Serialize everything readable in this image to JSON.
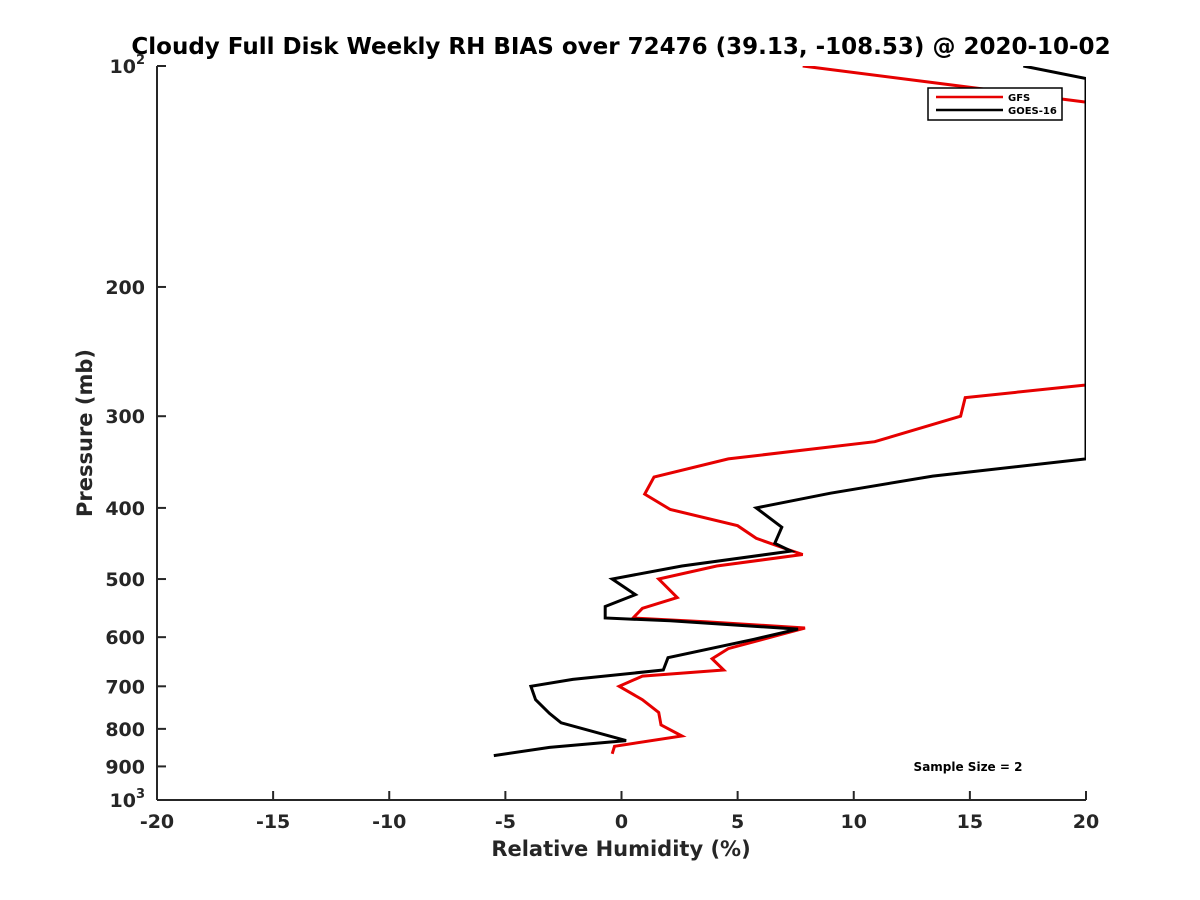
{
  "chart_data": {
    "type": "line",
    "title": "Cloudy Full Disk Weekly RH BIAS over 72476 (39.13, -108.53) @ 2020-10-02",
    "xlabel": "Relative Humidity (%)",
    "ylabel": "Pressure (mb)",
    "xlim": [
      -20,
      20
    ],
    "ylim": [
      100,
      1000
    ],
    "y_scale": "log",
    "y_reversed": true,
    "x_ticks": [
      "-20",
      "-15",
      "-10",
      "-5",
      "0",
      "5",
      "10",
      "15",
      "20"
    ],
    "y_ticks": [
      {
        "value": 100,
        "base": "10",
        "exp": "2"
      },
      {
        "value": 200,
        "label": "200"
      },
      {
        "value": 300,
        "label": "300"
      },
      {
        "value": 400,
        "label": "400"
      },
      {
        "value": 500,
        "label": "500"
      },
      {
        "value": 600,
        "label": "600"
      },
      {
        "value": 700,
        "label": "700"
      },
      {
        "value": 800,
        "label": "800"
      },
      {
        "value": 900,
        "label": "900"
      },
      {
        "value": 1000,
        "base": "10",
        "exp": "3"
      }
    ],
    "grid": false,
    "legend_position": "top-right",
    "annotation": "Sample Size = 2",
    "series": [
      {
        "name": "GFS",
        "color": "#e60000",
        "points": [
          {
            "x": 7.8,
            "y": 100
          },
          {
            "x": 20.0,
            "y": 112
          },
          {
            "x": 20.0,
            "y": 272
          },
          {
            "x": 14.8,
            "y": 283
          },
          {
            "x": 14.6,
            "y": 300
          },
          {
            "x": 10.9,
            "y": 325
          },
          {
            "x": 4.6,
            "y": 343
          },
          {
            "x": 1.4,
            "y": 363
          },
          {
            "x": 1.0,
            "y": 383
          },
          {
            "x": 2.1,
            "y": 402
          },
          {
            "x": 5.0,
            "y": 423
          },
          {
            "x": 5.8,
            "y": 440
          },
          {
            "x": 7.1,
            "y": 455
          },
          {
            "x": 7.8,
            "y": 463
          },
          {
            "x": 4.1,
            "y": 480
          },
          {
            "x": 1.6,
            "y": 500
          },
          {
            "x": 2.4,
            "y": 530
          },
          {
            "x": 0.9,
            "y": 548
          },
          {
            "x": 0.5,
            "y": 565
          },
          {
            "x": 3.7,
            "y": 572
          },
          {
            "x": 7.9,
            "y": 583
          },
          {
            "x": 4.6,
            "y": 622
          },
          {
            "x": 3.9,
            "y": 642
          },
          {
            "x": 4.4,
            "y": 665
          },
          {
            "x": 0.9,
            "y": 678
          },
          {
            "x": -0.1,
            "y": 700
          },
          {
            "x": 0.9,
            "y": 730
          },
          {
            "x": 1.6,
            "y": 760
          },
          {
            "x": 1.7,
            "y": 790
          },
          {
            "x": 2.6,
            "y": 818
          },
          {
            "x": -0.3,
            "y": 845
          },
          {
            "x": -0.4,
            "y": 865
          }
        ]
      },
      {
        "name": "GOES-16",
        "color": "#000000",
        "points": [
          {
            "x": 17.3,
            "y": 100
          },
          {
            "x": 20.0,
            "y": 104
          },
          {
            "x": 20.0,
            "y": 343
          },
          {
            "x": 13.4,
            "y": 362
          },
          {
            "x": 9.0,
            "y": 382
          },
          {
            "x": 5.8,
            "y": 400
          },
          {
            "x": 6.9,
            "y": 425
          },
          {
            "x": 6.6,
            "y": 447
          },
          {
            "x": 7.3,
            "y": 458
          },
          {
            "x": 2.6,
            "y": 480
          },
          {
            "x": -0.4,
            "y": 500
          },
          {
            "x": 0.6,
            "y": 525
          },
          {
            "x": -0.7,
            "y": 545
          },
          {
            "x": -0.7,
            "y": 565
          },
          {
            "x": 2.1,
            "y": 570
          },
          {
            "x": 7.6,
            "y": 585
          },
          {
            "x": 5.7,
            "y": 604
          },
          {
            "x": 2.0,
            "y": 640
          },
          {
            "x": 1.8,
            "y": 665
          },
          {
            "x": -2.1,
            "y": 685
          },
          {
            "x": -3.9,
            "y": 700
          },
          {
            "x": -3.7,
            "y": 730
          },
          {
            "x": -3.1,
            "y": 762
          },
          {
            "x": -2.6,
            "y": 785
          },
          {
            "x": 0.2,
            "y": 830
          },
          {
            "x": -3.1,
            "y": 848
          },
          {
            "x": -5.5,
            "y": 870
          }
        ]
      }
    ]
  }
}
